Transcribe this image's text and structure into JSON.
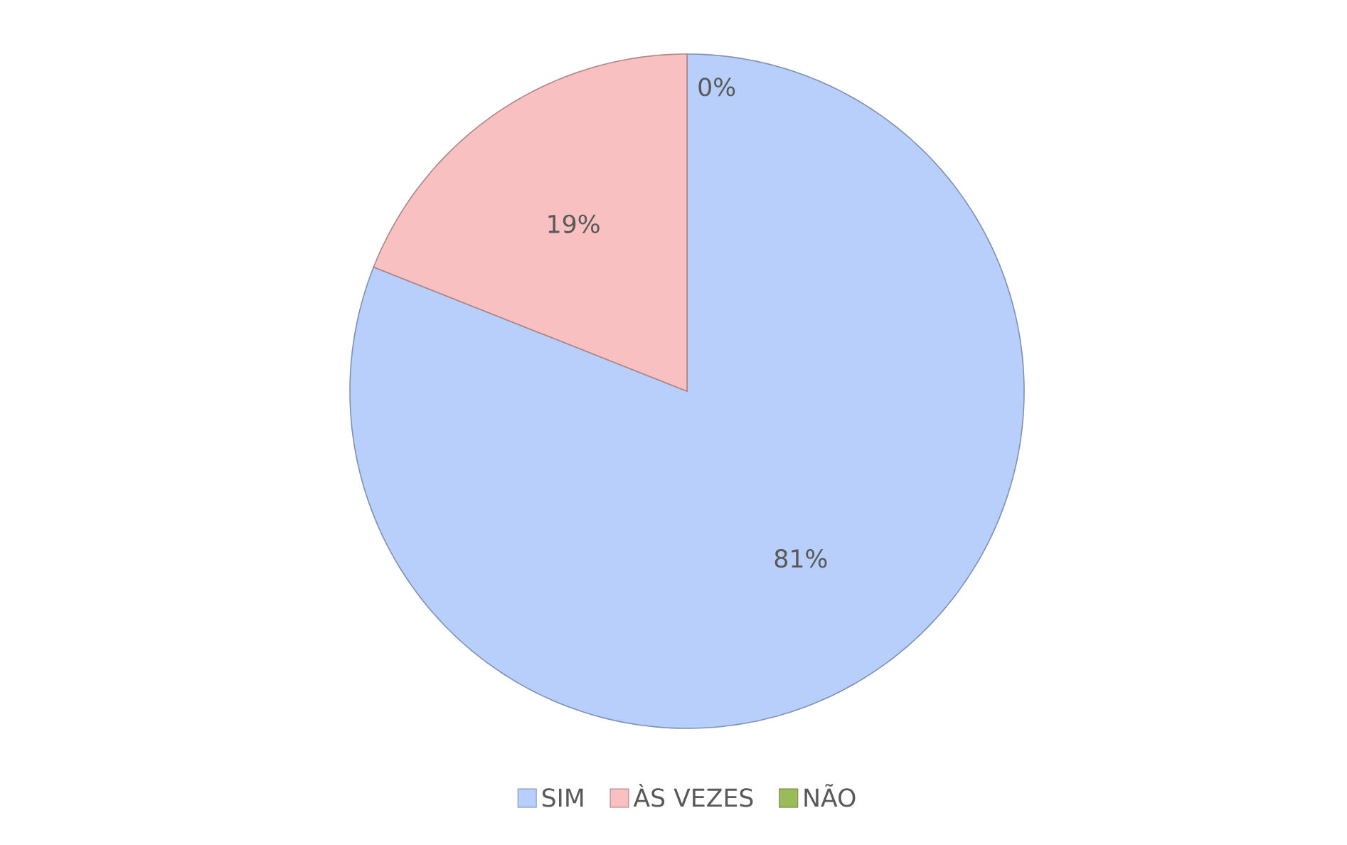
{
  "chart_data": {
    "type": "pie",
    "categories": [
      "SIM",
      "ÀS VEZES",
      "NÃO"
    ],
    "values": [
      81,
      19,
      0
    ],
    "value_labels": [
      "81%",
      "19%",
      "0%"
    ],
    "colors": [
      "#b7cffa",
      "#f8c0c0",
      "#9bbb59"
    ],
    "legend": "bottom"
  }
}
